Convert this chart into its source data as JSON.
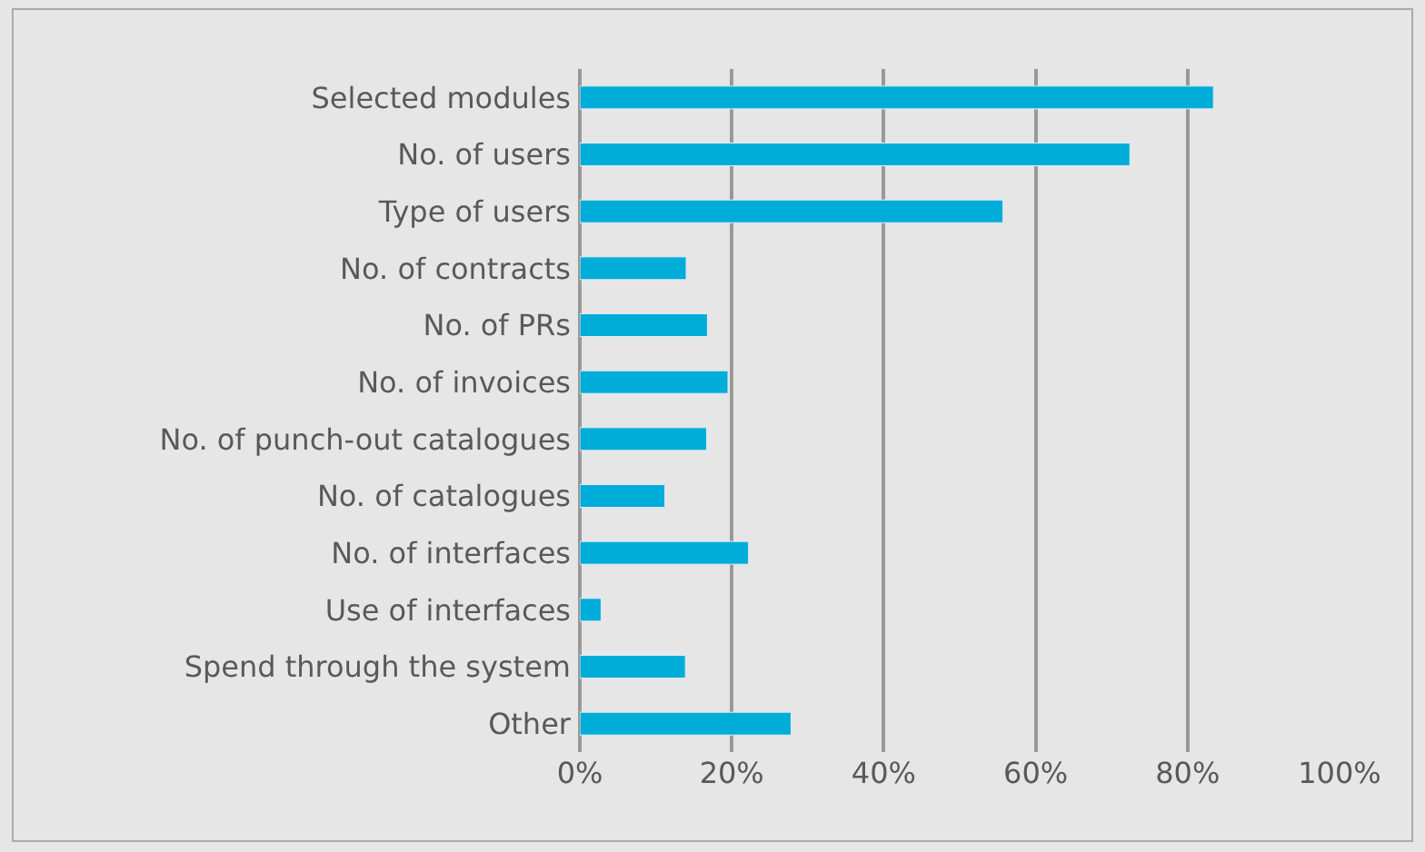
{
  "chart_data": {
    "type": "bar",
    "orientation": "horizontal",
    "categories": [
      "Selected modules",
      "No. of users",
      "Type of users",
      "No. of contracts",
      "No. of PRs",
      "No. of invoices",
      "No. of punch-out catalogues",
      "No. of catalogues",
      "No. of interfaces",
      "Use of interfaces",
      "Spend through the system",
      "Other"
    ],
    "values": [
      83.4,
      72.4,
      55.7,
      14.0,
      16.8,
      19.5,
      16.7,
      11.2,
      22.2,
      2.8,
      13.9,
      27.8
    ],
    "color": "#00acd8",
    "xlim": [
      0,
      100
    ],
    "xticks": [
      {
        "value": 0,
        "label": "0%"
      },
      {
        "value": 20,
        "label": "20%"
      },
      {
        "value": 40,
        "label": "40%"
      },
      {
        "value": 60,
        "label": "60%"
      },
      {
        "value": 80,
        "label": "80%"
      },
      {
        "value": 100,
        "label": "100%"
      }
    ],
    "grid": "x"
  }
}
